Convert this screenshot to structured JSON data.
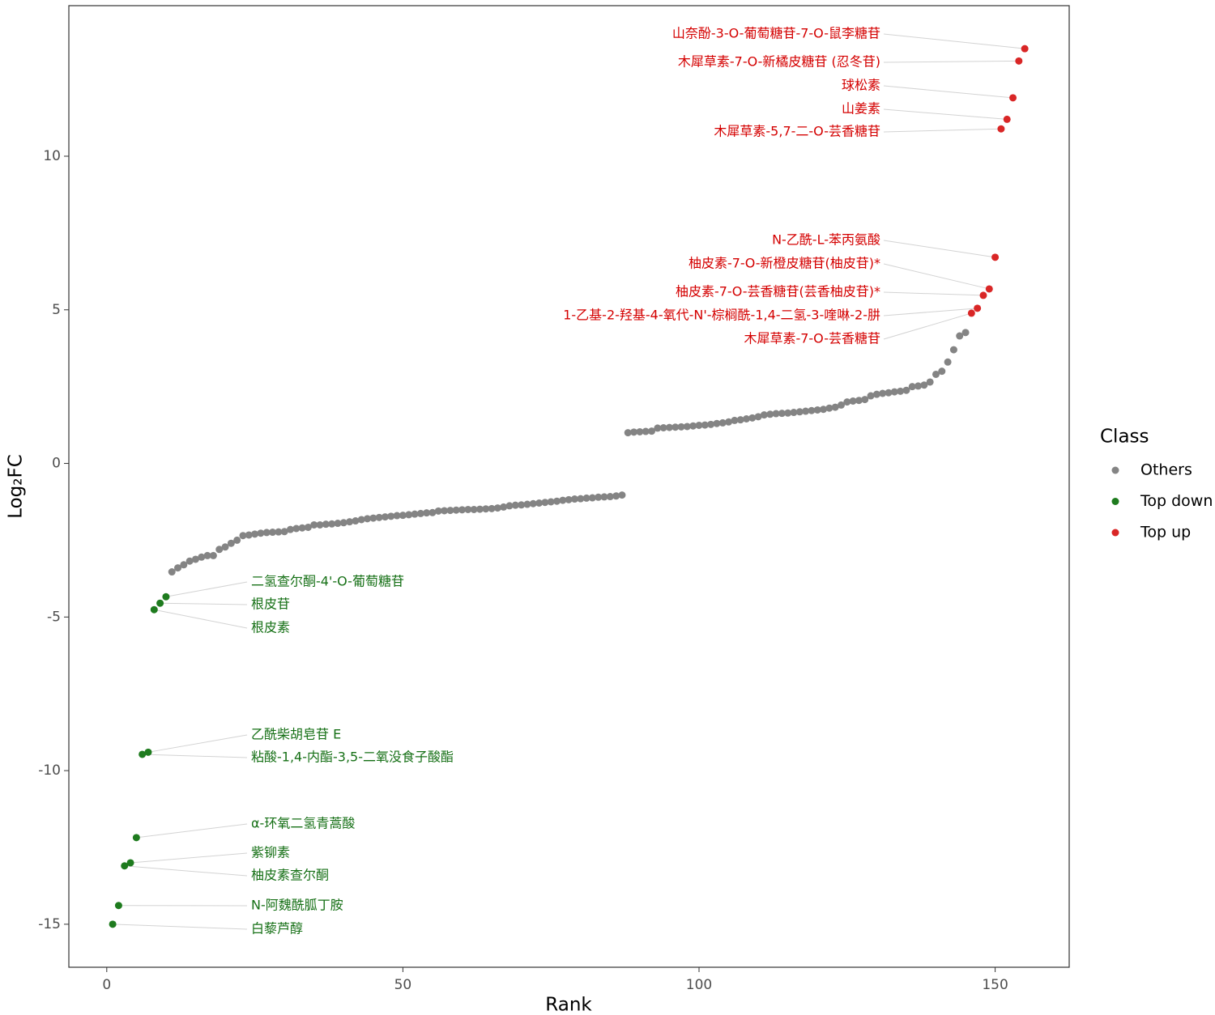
{
  "chart_data": {
    "type": "scatter",
    "x_label": "Rank",
    "y_label": "Log₂FC",
    "xlim": [
      -6.4,
      162.5
    ],
    "ylim": [
      -16.4,
      14.9
    ],
    "xticks": [
      0,
      50,
      100,
      150
    ],
    "yticks": [
      -15,
      -10,
      -5,
      0,
      5,
      10
    ],
    "grid": false,
    "legend_title": "Class",
    "legend": "right",
    "series": [
      {
        "name": "Others",
        "color": "#848484",
        "x": [
          11,
          12,
          13,
          14,
          15,
          16,
          17,
          18,
          19,
          20,
          21,
          22,
          23,
          24,
          25,
          26,
          27,
          28,
          29,
          30,
          31,
          32,
          33,
          34,
          35,
          36,
          37,
          38,
          39,
          40,
          41,
          42,
          43,
          44,
          45,
          46,
          47,
          48,
          49,
          50,
          51,
          52,
          53,
          54,
          55,
          56,
          57,
          58,
          59,
          60,
          61,
          62,
          63,
          64,
          65,
          66,
          67,
          68,
          69,
          70,
          71,
          72,
          73,
          74,
          75,
          76,
          77,
          78,
          79,
          80,
          81,
          82,
          83,
          84,
          85,
          86,
          87,
          88,
          89,
          90,
          91,
          92,
          93,
          94,
          95,
          96,
          97,
          98,
          99,
          100,
          101,
          102,
          103,
          104,
          105,
          106,
          107,
          108,
          109,
          110,
          111,
          112,
          113,
          114,
          115,
          116,
          117,
          118,
          119,
          120,
          121,
          122,
          123,
          124,
          125,
          126,
          127,
          128,
          129,
          130,
          131,
          132,
          133,
          134,
          135,
          136,
          137,
          138,
          139,
          140,
          141,
          142,
          143,
          144,
          145
        ],
        "values": [
          -3.53,
          -3.4,
          -3.3,
          -3.18,
          -3.12,
          -3.05,
          -3.0,
          -3.0,
          -2.8,
          -2.72,
          -2.6,
          -2.5,
          -2.35,
          -2.33,
          -2.3,
          -2.27,
          -2.25,
          -2.24,
          -2.23,
          -2.22,
          -2.15,
          -2.12,
          -2.1,
          -2.08,
          -2.0,
          -2.0,
          -1.98,
          -1.97,
          -1.95,
          -1.93,
          -1.9,
          -1.87,
          -1.83,
          -1.8,
          -1.78,
          -1.76,
          -1.74,
          -1.72,
          -1.7,
          -1.69,
          -1.67,
          -1.65,
          -1.63,
          -1.61,
          -1.6,
          -1.55,
          -1.54,
          -1.53,
          -1.52,
          -1.51,
          -1.5,
          -1.5,
          -1.49,
          -1.48,
          -1.47,
          -1.45,
          -1.42,
          -1.38,
          -1.36,
          -1.35,
          -1.33,
          -1.31,
          -1.29,
          -1.27,
          -1.25,
          -1.23,
          -1.2,
          -1.18,
          -1.16,
          -1.15,
          -1.13,
          -1.12,
          -1.1,
          -1.09,
          -1.08,
          -1.06,
          -1.03,
          1.0,
          1.02,
          1.03,
          1.04,
          1.05,
          1.15,
          1.16,
          1.17,
          1.18,
          1.19,
          1.2,
          1.22,
          1.24,
          1.25,
          1.27,
          1.3,
          1.32,
          1.35,
          1.4,
          1.42,
          1.45,
          1.48,
          1.52,
          1.58,
          1.6,
          1.62,
          1.63,
          1.64,
          1.66,
          1.68,
          1.7,
          1.72,
          1.74,
          1.76,
          1.8,
          1.83,
          1.9,
          2.0,
          2.03,
          2.05,
          2.08,
          2.2,
          2.25,
          2.28,
          2.3,
          2.33,
          2.35,
          2.38,
          2.5,
          2.52,
          2.55,
          2.65,
          2.9,
          3.0,
          3.3,
          3.7,
          4.15,
          4.26
        ]
      },
      {
        "name": "Top down",
        "color": "#1e7b1e",
        "label_color": "#167016",
        "x": [
          1,
          2,
          3,
          4,
          5,
          6,
          7,
          8,
          9,
          10
        ],
        "values": [
          -15.0,
          -14.39,
          -13.1,
          -13.0,
          -12.18,
          -9.47,
          -9.4,
          -4.76,
          -4.55,
          -4.34
        ],
        "labels": [
          "白藜芦醇",
          "N-阿魏酰胍丁胺",
          "柚皮素查尔酮",
          "紫铆素",
          "α-环氧二氢青蒿酸",
          "粘酸-1,4-内酯-3,5-二氧没食子酸酯",
          "乙酰柴胡皂苷 E",
          "根皮素",
          "根皮苷",
          "二氢查尔酮-4'-O-葡萄糖苷"
        ]
      },
      {
        "name": "Top up",
        "color": "#d92626",
        "label_color": "#d40000",
        "x": [
          146,
          147,
          148,
          149,
          150,
          151,
          152,
          153,
          154,
          155
        ],
        "values": [
          4.89,
          5.05,
          5.47,
          5.68,
          6.71,
          10.89,
          11.2,
          11.9,
          13.1,
          13.5
        ],
        "labels": [
          "木犀草素-7-O-芸香糖苷",
          "1-乙基-2-羟基-4-氧代-N'-棕榈酰-1,4-二氢-3-喹啉-2-肼",
          "柚皮素-7-O-芸香糖苷(芸香柚皮苷)*",
          "柚皮素-7-O-新橙皮糖苷(柚皮苷)*",
          "N-乙酰-L-苯丙氨酸",
          "木犀草素-5,7-二-O-芸香糖苷",
          "山姜素",
          "球松素",
          "木犀草素-7-O-新橘皮糖苷 (忍冬苷)",
          "山奈酚-3-O-葡萄糖苷-7-O-鼠李糖苷"
        ]
      }
    ]
  }
}
